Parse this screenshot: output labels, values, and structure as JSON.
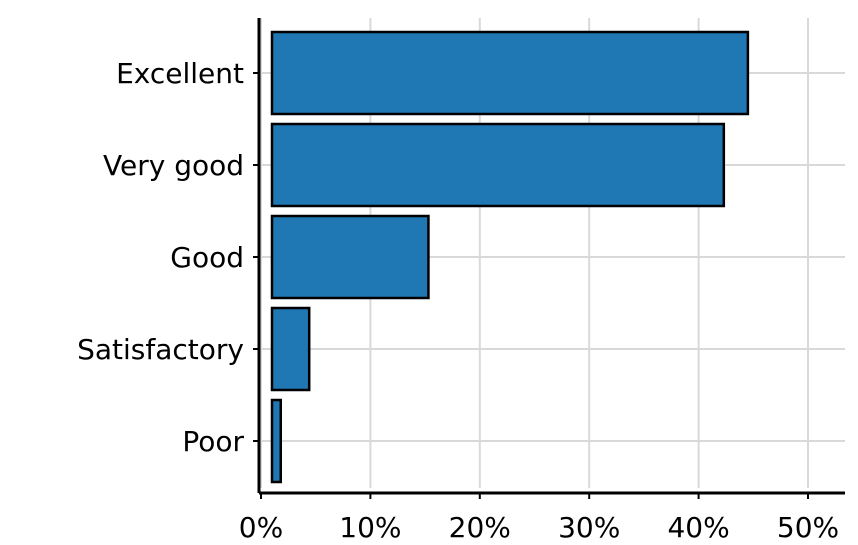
{
  "chart_data": {
    "type": "bar",
    "orientation": "horizontal",
    "categories": [
      "Excellent",
      "Very good",
      "Good",
      "Satisfactory",
      "Poor"
    ],
    "values": [
      43.5,
      41.3,
      14.3,
      3.4,
      0.8
    ],
    "xlim": [
      0,
      50
    ],
    "x_ticks": [
      "0%",
      "10%",
      "20%",
      "30%",
      "40%",
      "50%"
    ],
    "title": "",
    "xlabel": "",
    "ylabel": "",
    "grid": true,
    "bar_color": "#1f77b4",
    "edge_color": "#000000"
  }
}
